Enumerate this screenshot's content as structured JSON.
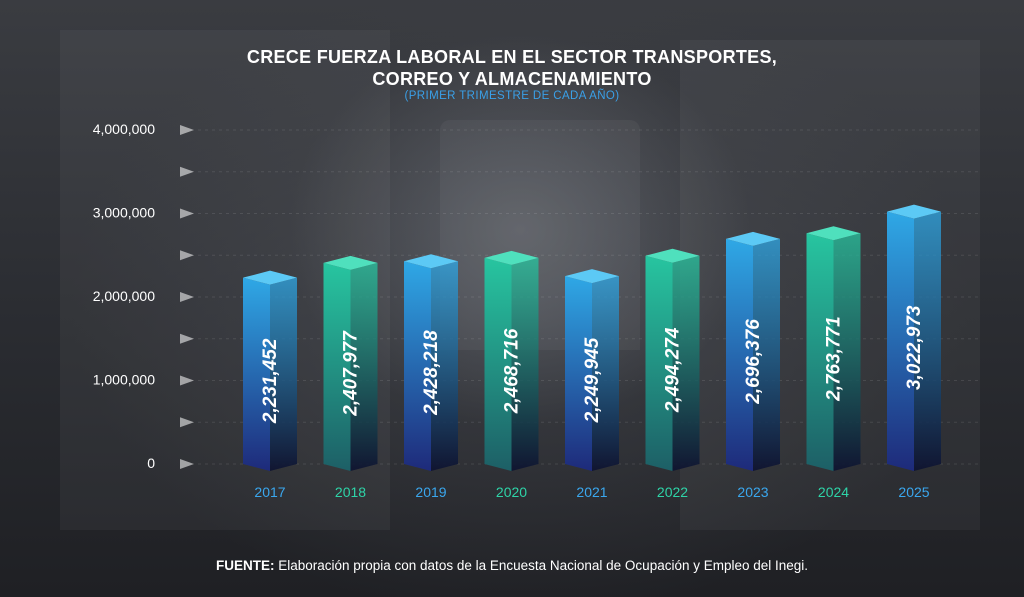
{
  "title_line1": "CRECE FUERZA LABORAL EN EL SECTOR TRANSPORTES,",
  "title_line2": "CORREO Y ALMACENAMIENTO",
  "subtitle": "(PRIMER TRIMESTRE DE CADA AÑO)",
  "source_label": "FUENTE:",
  "source_text": " Elaboración propia con datos de la Encuesta Nacional de Ocupación y Empleo del Inegi.",
  "colors": {
    "blue_top": "#2fa8e6",
    "blue_bottom": "#1e2a7a",
    "teal_top": "#27c5a0",
    "teal_bottom": "#1d5f66",
    "year_blue": "#3aa7ee",
    "year_teal": "#2ed4a8",
    "axis_text": "#ffffff"
  },
  "chart_data": {
    "type": "bar",
    "categories": [
      "2017",
      "2018",
      "2019",
      "2020",
      "2021",
      "2022",
      "2023",
      "2024",
      "2025"
    ],
    "values": [
      2231452,
      2407977,
      2428218,
      2468716,
      2249945,
      2494274,
      2696376,
      2763771,
      3022973
    ],
    "value_labels": [
      "2,231,452",
      "2,407,977",
      "2,428,218",
      "2,468,716",
      "2,249,945",
      "2,494,274",
      "2,696,376",
      "2,763,771",
      "3,022,973"
    ],
    "bar_colors": [
      "blue",
      "teal",
      "blue",
      "teal",
      "blue",
      "teal",
      "blue",
      "teal",
      "blue"
    ],
    "yticks": [
      0,
      1000000,
      2000000,
      3000000,
      4000000
    ],
    "ytick_labels": [
      "0",
      "1,000,000",
      "2,000,000",
      "3,000,000",
      "4,000,000"
    ],
    "ylim": [
      0,
      4000000
    ],
    "grid": true,
    "legend": "none"
  }
}
